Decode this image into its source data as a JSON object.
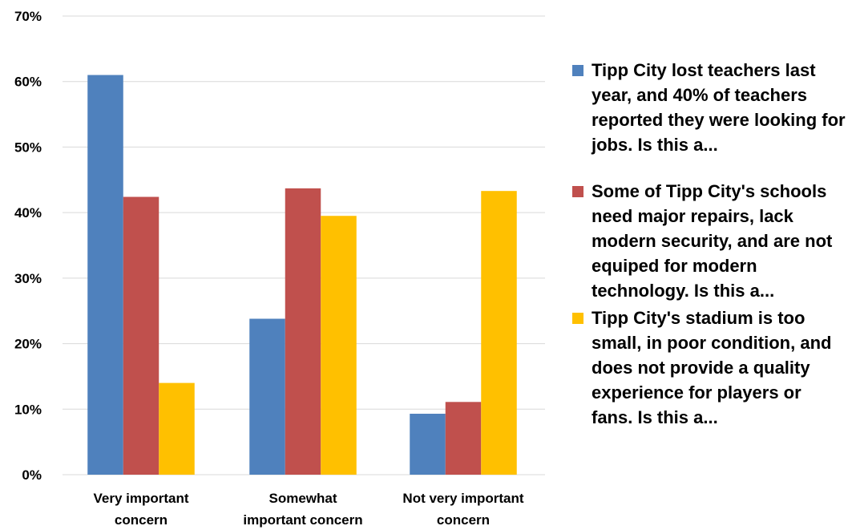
{
  "chart_data": {
    "type": "bar",
    "categories": [
      "Very important concern",
      "Somewhat important concern",
      "Not very important concern"
    ],
    "category_label_lines": [
      [
        "Very important",
        "concern"
      ],
      [
        "Somewhat",
        "important concern"
      ],
      [
        "Not very important",
        "concern"
      ]
    ],
    "series": [
      {
        "name": "Tipp City lost teachers last year, and 40% of teachers reported they were looking for jobs.  Is this a...",
        "color": "#4f81bd",
        "values": [
          61,
          23.8,
          9.3
        ]
      },
      {
        "name": "Some of Tipp City's schools need major repairs, lack modern security, and are not equiped for modern technology.  Is this a...",
        "color": "#c0504d",
        "values": [
          42.4,
          43.7,
          11.1
        ]
      },
      {
        "name": "Tipp City's stadium is too small, in poor condition, and does not provide a quality experience for players or fans.  Is this a...",
        "color": "#ffc000",
        "values": [
          14,
          39.5,
          43.3
        ]
      }
    ],
    "y_ticks": [
      "0%",
      "10%",
      "20%",
      "30%",
      "40%",
      "50%",
      "60%",
      "70%"
    ],
    "ylim": [
      0,
      70
    ],
    "grid": true,
    "legend_position": "right"
  }
}
